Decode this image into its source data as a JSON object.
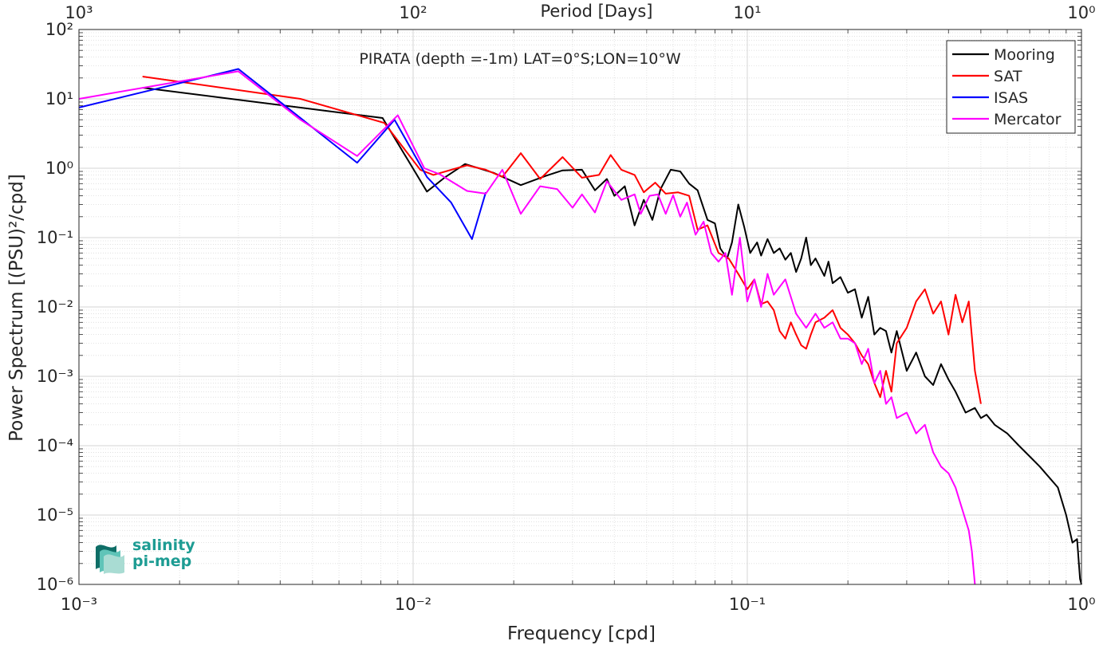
{
  "chart_data": {
    "type": "line",
    "title": "PIRATA (depth =-1m) LAT=0°S;LON=10°W",
    "xlabel": "Frequency [cpd]",
    "ylabel": "Power Spectrum [(PSU)²/cpd]",
    "top_xlabel": "Period [Days]",
    "xscale": "log",
    "yscale": "log",
    "xlim": [
      0.001,
      1
    ],
    "ylim": [
      1e-06,
      100
    ],
    "xticks": [
      "10⁻³",
      "10⁻²",
      "10⁻¹",
      "10⁰"
    ],
    "yticks": [
      "10⁻⁶",
      "10⁻⁵",
      "10⁻⁴",
      "10⁻³",
      "10⁻²",
      "10⁻¹",
      "10⁰",
      "10¹",
      "10²"
    ],
    "top_xticks": [
      "10³",
      "10²",
      "10¹",
      "10⁰"
    ],
    "grid": true,
    "legend_position": "top-right",
    "series": [
      {
        "name": "Mooring",
        "color": "#000000",
        "points": [
          [
            0.00155,
            14.5
          ],
          [
            0.0081,
            5.3
          ],
          [
            0.011,
            0.46
          ],
          [
            0.0125,
            0.75
          ],
          [
            0.0143,
            1.15
          ],
          [
            0.0175,
            0.85
          ],
          [
            0.021,
            0.57
          ],
          [
            0.025,
            0.78
          ],
          [
            0.028,
            0.93
          ],
          [
            0.032,
            0.95
          ],
          [
            0.035,
            0.48
          ],
          [
            0.038,
            0.7
          ],
          [
            0.04,
            0.4
          ],
          [
            0.043,
            0.55
          ],
          [
            0.046,
            0.15
          ],
          [
            0.049,
            0.35
          ],
          [
            0.052,
            0.18
          ],
          [
            0.055,
            0.5
          ],
          [
            0.059,
            0.95
          ],
          [
            0.063,
            0.9
          ],
          [
            0.067,
            0.6
          ],
          [
            0.071,
            0.48
          ],
          [
            0.076,
            0.18
          ],
          [
            0.08,
            0.16
          ],
          [
            0.083,
            0.07
          ],
          [
            0.087,
            0.05
          ],
          [
            0.09,
            0.085
          ],
          [
            0.094,
            0.3
          ],
          [
            0.098,
            0.14
          ],
          [
            0.102,
            0.06
          ],
          [
            0.107,
            0.085
          ],
          [
            0.11,
            0.055
          ],
          [
            0.115,
            0.095
          ],
          [
            0.12,
            0.06
          ],
          [
            0.125,
            0.07
          ],
          [
            0.13,
            0.048
          ],
          [
            0.135,
            0.06
          ],
          [
            0.14,
            0.032
          ],
          [
            0.145,
            0.05
          ],
          [
            0.15,
            0.1
          ],
          [
            0.155,
            0.04
          ],
          [
            0.16,
            0.05
          ],
          [
            0.17,
            0.028
          ],
          [
            0.175,
            0.045
          ],
          [
            0.18,
            0.022
          ],
          [
            0.19,
            0.027
          ],
          [
            0.2,
            0.016
          ],
          [
            0.21,
            0.018
          ],
          [
            0.22,
            0.007
          ],
          [
            0.23,
            0.014
          ],
          [
            0.24,
            0.004
          ],
          [
            0.25,
            0.005
          ],
          [
            0.26,
            0.0045
          ],
          [
            0.27,
            0.0022
          ],
          [
            0.28,
            0.0045
          ],
          [
            0.3,
            0.0012
          ],
          [
            0.32,
            0.0022
          ],
          [
            0.34,
            0.001
          ],
          [
            0.36,
            0.00075
          ],
          [
            0.38,
            0.0015
          ],
          [
            0.4,
            0.0009
          ],
          [
            0.42,
            0.0006
          ],
          [
            0.45,
            0.0003
          ],
          [
            0.48,
            0.00035
          ],
          [
            0.5,
            0.00025
          ],
          [
            0.52,
            0.00028
          ],
          [
            0.55,
            0.0002
          ],
          [
            0.6,
            0.00015
          ],
          [
            0.65,
            0.0001
          ],
          [
            0.7,
            7e-05
          ],
          [
            0.75,
            5e-05
          ],
          [
            0.8,
            3.5e-05
          ],
          [
            0.85,
            2.5e-05
          ],
          [
            0.9,
            1e-05
          ],
          [
            0.94,
            4e-06
          ],
          [
            0.97,
            4.5e-06
          ],
          [
            0.99,
            1.2e-06
          ],
          [
            1.0,
            1e-06
          ]
        ]
      },
      {
        "name": "SAT",
        "color": "#ff0000",
        "points": [
          [
            0.00155,
            21.0
          ],
          [
            0.0046,
            10.0
          ],
          [
            0.0082,
            4.5
          ],
          [
            0.0105,
            0.95
          ],
          [
            0.0115,
            0.8
          ],
          [
            0.0135,
            1.0
          ],
          [
            0.0145,
            1.1
          ],
          [
            0.0165,
            0.95
          ],
          [
            0.0185,
            0.75
          ],
          [
            0.021,
            1.65
          ],
          [
            0.024,
            0.7
          ],
          [
            0.028,
            1.45
          ],
          [
            0.032,
            0.73
          ],
          [
            0.036,
            0.8
          ],
          [
            0.039,
            1.55
          ],
          [
            0.042,
            0.95
          ],
          [
            0.046,
            0.8
          ],
          [
            0.049,
            0.45
          ],
          [
            0.053,
            0.62
          ],
          [
            0.057,
            0.43
          ],
          [
            0.062,
            0.45
          ],
          [
            0.067,
            0.4
          ],
          [
            0.071,
            0.13
          ],
          [
            0.076,
            0.15
          ],
          [
            0.082,
            0.06
          ],
          [
            0.088,
            0.05
          ],
          [
            0.094,
            0.03
          ],
          [
            0.1,
            0.018
          ],
          [
            0.105,
            0.025
          ],
          [
            0.11,
            0.011
          ],
          [
            0.115,
            0.012
          ],
          [
            0.12,
            0.009
          ],
          [
            0.125,
            0.0045
          ],
          [
            0.13,
            0.0035
          ],
          [
            0.135,
            0.006
          ],
          [
            0.14,
            0.004
          ],
          [
            0.145,
            0.0028
          ],
          [
            0.15,
            0.0025
          ],
          [
            0.155,
            0.004
          ],
          [
            0.16,
            0.006
          ],
          [
            0.17,
            0.007
          ],
          [
            0.18,
            0.009
          ],
          [
            0.19,
            0.005
          ],
          [
            0.2,
            0.004
          ],
          [
            0.21,
            0.003
          ],
          [
            0.22,
            0.002
          ],
          [
            0.23,
            0.0015
          ],
          [
            0.24,
            0.0008
          ],
          [
            0.25,
            0.0005
          ],
          [
            0.26,
            0.0012
          ],
          [
            0.27,
            0.0006
          ],
          [
            0.28,
            0.003
          ],
          [
            0.3,
            0.005
          ],
          [
            0.32,
            0.012
          ],
          [
            0.34,
            0.018
          ],
          [
            0.36,
            0.008
          ],
          [
            0.38,
            0.012
          ],
          [
            0.4,
            0.004
          ],
          [
            0.42,
            0.015
          ],
          [
            0.44,
            0.006
          ],
          [
            0.46,
            0.012
          ],
          [
            0.48,
            0.0012
          ],
          [
            0.5,
            0.0004
          ]
        ]
      },
      {
        "name": "ISAS",
        "color": "#0000ff",
        "points": [
          [
            0.001,
            7.5
          ],
          [
            0.003,
            27.0
          ],
          [
            0.0068,
            1.2
          ],
          [
            0.0088,
            5.0
          ],
          [
            0.011,
            0.75
          ],
          [
            0.013,
            0.32
          ],
          [
            0.015,
            0.095
          ],
          [
            0.0165,
            0.45
          ]
        ]
      },
      {
        "name": "Mercator",
        "color": "#ff00ff",
        "points": [
          [
            0.001,
            10.0
          ],
          [
            0.003,
            25.0
          ],
          [
            0.0046,
            5.0
          ],
          [
            0.0068,
            1.5
          ],
          [
            0.009,
            5.8
          ],
          [
            0.0108,
            1.0
          ],
          [
            0.012,
            0.82
          ],
          [
            0.0145,
            0.47
          ],
          [
            0.0165,
            0.43
          ],
          [
            0.0185,
            0.95
          ],
          [
            0.021,
            0.22
          ],
          [
            0.024,
            0.55
          ],
          [
            0.027,
            0.5
          ],
          [
            0.03,
            0.27
          ],
          [
            0.032,
            0.42
          ],
          [
            0.035,
            0.23
          ],
          [
            0.038,
            0.65
          ],
          [
            0.042,
            0.35
          ],
          [
            0.046,
            0.42
          ],
          [
            0.048,
            0.22
          ],
          [
            0.051,
            0.4
          ],
          [
            0.054,
            0.42
          ],
          [
            0.057,
            0.22
          ],
          [
            0.06,
            0.41
          ],
          [
            0.063,
            0.2
          ],
          [
            0.066,
            0.32
          ],
          [
            0.07,
            0.11
          ],
          [
            0.074,
            0.17
          ],
          [
            0.078,
            0.06
          ],
          [
            0.082,
            0.045
          ],
          [
            0.086,
            0.06
          ],
          [
            0.09,
            0.015
          ],
          [
            0.095,
            0.1
          ],
          [
            0.1,
            0.012
          ],
          [
            0.105,
            0.025
          ],
          [
            0.11,
            0.01
          ],
          [
            0.115,
            0.03
          ],
          [
            0.12,
            0.015
          ],
          [
            0.13,
            0.025
          ],
          [
            0.14,
            0.008
          ],
          [
            0.15,
            0.005
          ],
          [
            0.16,
            0.008
          ],
          [
            0.17,
            0.005
          ],
          [
            0.18,
            0.006
          ],
          [
            0.19,
            0.0035
          ],
          [
            0.2,
            0.0035
          ],
          [
            0.21,
            0.003
          ],
          [
            0.22,
            0.0015
          ],
          [
            0.23,
            0.0025
          ],
          [
            0.24,
            0.0008
          ],
          [
            0.25,
            0.0012
          ],
          [
            0.26,
            0.0004
          ],
          [
            0.27,
            0.0005
          ],
          [
            0.28,
            0.00025
          ],
          [
            0.3,
            0.0003
          ],
          [
            0.32,
            0.00015
          ],
          [
            0.34,
            0.0002
          ],
          [
            0.36,
            8e-05
          ],
          [
            0.38,
            5e-05
          ],
          [
            0.4,
            4e-05
          ],
          [
            0.42,
            2.5e-05
          ],
          [
            0.44,
            1.2e-05
          ],
          [
            0.46,
            6e-06
          ],
          [
            0.47,
            3e-06
          ],
          [
            0.48,
            1e-06
          ]
        ]
      }
    ]
  },
  "logo": {
    "line1": "salinity",
    "line2": "pi-mep",
    "colors": [
      "#0f6e67",
      "#1d9c93",
      "#5fc4b8",
      "#a9dcd3"
    ]
  }
}
